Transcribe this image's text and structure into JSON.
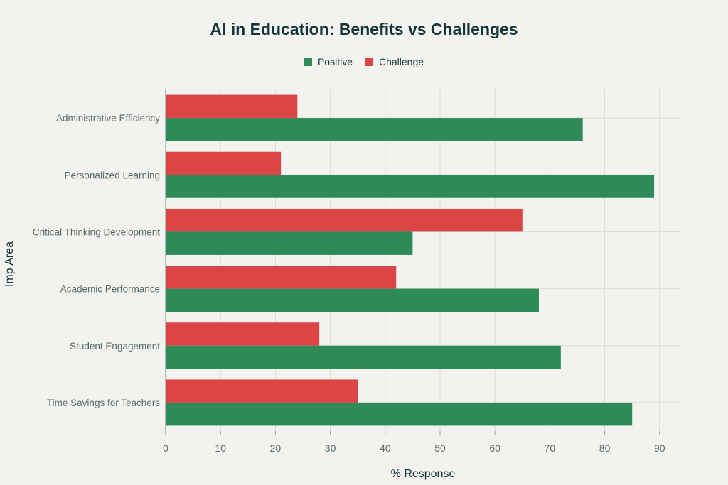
{
  "chart_data": {
    "type": "bar",
    "orientation": "horizontal",
    "title": "AI in Education: Benefits vs Challenges",
    "xlabel": "% Response",
    "ylabel": "Imp Area",
    "categories": [
      "Administrative Efficiency",
      "Personalized Learning",
      "Critical Thinking Development",
      "Academic Performance",
      "Student Engagement",
      "Time Savings for Teachers"
    ],
    "series": [
      {
        "name": "Positive",
        "color": "#2e8b57",
        "values": [
          76,
          89,
          45,
          68,
          72,
          85
        ]
      },
      {
        "name": "Challenge",
        "color": "#db4545",
        "values": [
          24,
          21,
          65,
          42,
          28,
          35
        ]
      }
    ],
    "xlim": [
      0,
      94
    ],
    "xticks": [
      0,
      10,
      20,
      30,
      40,
      50,
      60,
      70,
      80,
      90
    ],
    "grid": true,
    "legend_position": "top-center"
  }
}
